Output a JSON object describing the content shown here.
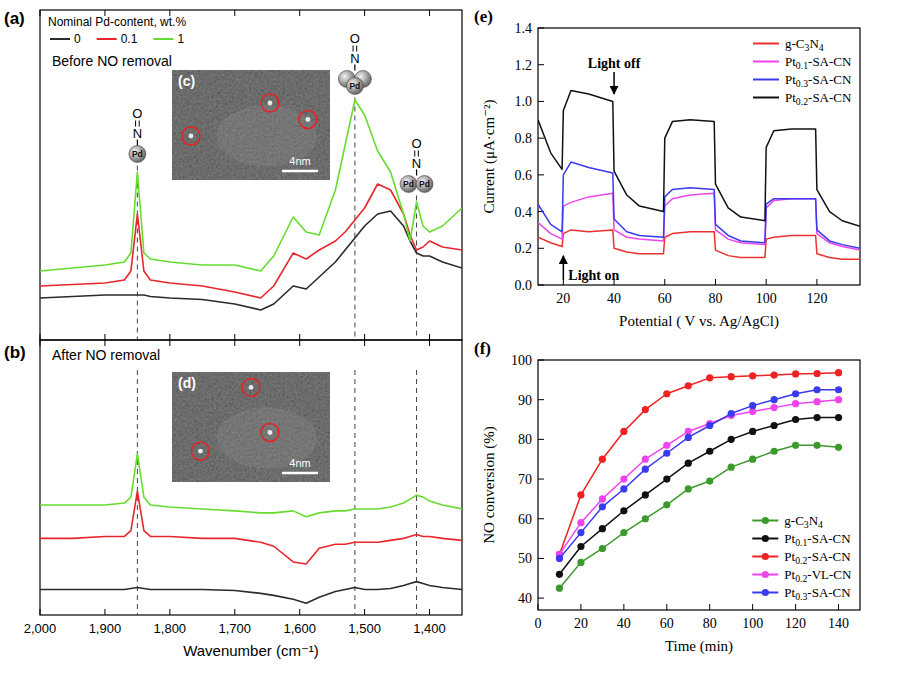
{
  "chart_data": [
    {
      "type": "line",
      "title": "(a)",
      "subtitle": "Before NO removal",
      "legend_title": "Nominal Pd-content, wt.%",
      "legend": "upper left",
      "x": [
        2000,
        1950,
        1900,
        1870,
        1860,
        1850,
        1840,
        1830,
        1800,
        1750,
        1700,
        1660,
        1640,
        1610,
        1590,
        1570,
        1545,
        1530,
        1515,
        1500,
        1480,
        1460,
        1440,
        1430,
        1420,
        1410,
        1400,
        1380,
        1350
      ],
      "xlim": [
        2000,
        1350
      ],
      "xticks": [
        2000,
        1900,
        1800,
        1700,
        1600,
        1500,
        1400
      ],
      "ylim": [
        0,
        11
      ],
      "yticks": [],
      "tick_labels": false,
      "vlines": [
        1850,
        1515,
        1420
      ],
      "icons": [
        {
          "at": 1850,
          "labels": [
            "O",
            "N",
            "Pd"
          ],
          "metal_atoms": 1
        },
        {
          "at": 1515,
          "labels": [
            "O",
            "N",
            "Pd"
          ],
          "metal_atoms": 3
        },
        {
          "at": 1420,
          "labels": [
            "O",
            "N",
            "Pd",
            "Pd"
          ],
          "metal_atoms": 2
        }
      ],
      "inset": {
        "label": "(c)",
        "scale_bar": "4nm"
      },
      "series": [
        {
          "name": "0",
          "color": "#2b2b2b",
          "values": [
            1.4,
            1.45,
            1.5,
            1.5,
            1.5,
            1.5,
            1.5,
            1.45,
            1.4,
            1.35,
            1.2,
            1.0,
            1.2,
            1.8,
            1.7,
            2.1,
            2.6,
            3.0,
            3.4,
            3.8,
            4.2,
            4.3,
            3.8,
            3.3,
            2.9,
            2.8,
            2.8,
            2.6,
            2.4
          ]
        },
        {
          "name": "0.1",
          "color": "#e8262b",
          "values": [
            1.8,
            1.85,
            1.9,
            2.0,
            2.3,
            4.2,
            2.3,
            2.0,
            1.9,
            1.8,
            1.6,
            1.4,
            1.8,
            2.9,
            2.7,
            3.0,
            3.3,
            3.6,
            4.0,
            4.4,
            5.2,
            5.0,
            4.2,
            3.5,
            3.0,
            3.1,
            3.3,
            3.1,
            3.0
          ]
        },
        {
          "name": "1",
          "color": "#66dd2e",
          "values": [
            2.3,
            2.4,
            2.5,
            2.6,
            2.9,
            5.6,
            2.9,
            2.7,
            2.6,
            2.5,
            2.5,
            2.3,
            2.8,
            4.1,
            3.6,
            3.5,
            5.0,
            6.5,
            8.0,
            7.5,
            6.3,
            5.6,
            4.2,
            3.3,
            4.6,
            3.8,
            3.6,
            3.8,
            4.4
          ]
        }
      ]
    },
    {
      "type": "line",
      "title": "(b)",
      "subtitle": "After NO removal",
      "x_label": "Wavenumber (cm⁻¹)",
      "x": [
        2000,
        1950,
        1900,
        1870,
        1860,
        1850,
        1840,
        1830,
        1800,
        1750,
        1700,
        1660,
        1640,
        1610,
        1590,
        1570,
        1545,
        1530,
        1515,
        1500,
        1480,
        1460,
        1440,
        1430,
        1420,
        1410,
        1400,
        1380,
        1350
      ],
      "xlim": [
        2000,
        1350
      ],
      "xticks": [
        {
          "value": 2000,
          "label": "2,000"
        },
        {
          "value": 1900,
          "label": "1,900"
        },
        {
          "value": 1800,
          "label": "1,800"
        },
        {
          "value": 1700,
          "label": "1,700"
        },
        {
          "value": 1600,
          "label": "1,600"
        },
        {
          "value": 1500,
          "label": "1,500"
        },
        {
          "value": 1400,
          "label": "1,400"
        }
      ],
      "ylim": [
        0,
        14
      ],
      "yticks": [],
      "tick_labels": "x",
      "vlines": [
        1850,
        1515,
        1420
      ],
      "inset": {
        "label": "(d)",
        "scale_bar": "4nm"
      },
      "series": [
        {
          "color": "#2b2b2b",
          "values": [
            1.3,
            1.3,
            1.3,
            1.3,
            1.35,
            1.4,
            1.35,
            1.3,
            1.3,
            1.3,
            1.25,
            1.1,
            1.0,
            0.8,
            0.6,
            0.9,
            1.2,
            1.3,
            1.4,
            1.3,
            1.3,
            1.35,
            1.5,
            1.6,
            1.7,
            1.6,
            1.5,
            1.4,
            1.3
          ]
        },
        {
          "color": "#e8262b",
          "values": [
            3.9,
            3.9,
            4.0,
            4.0,
            4.3,
            6.3,
            4.3,
            4.0,
            4.0,
            3.9,
            3.9,
            3.7,
            3.5,
            2.7,
            2.6,
            3.4,
            3.6,
            3.6,
            3.7,
            3.7,
            3.7,
            3.8,
            3.9,
            4.0,
            4.1,
            4.0,
            4.0,
            3.9,
            3.8
          ]
        },
        {
          "color": "#66dd2e",
          "values": [
            5.6,
            5.6,
            5.6,
            5.7,
            6.0,
            8.2,
            6.0,
            5.6,
            5.5,
            5.4,
            5.3,
            5.2,
            5.2,
            5.3,
            5.0,
            5.2,
            5.3,
            5.3,
            5.4,
            5.4,
            5.4,
            5.5,
            5.7,
            5.9,
            6.1,
            6.0,
            5.8,
            5.6,
            5.4
          ]
        }
      ]
    },
    {
      "type": "line",
      "title": "(e)",
      "x_label": "Potential ( V vs. Ag/AgCl)",
      "y_label": "Current (μA·cm⁻²)",
      "legend": "upper right",
      "x": [
        10,
        15,
        19.5,
        20,
        23,
        30,
        39.5,
        40,
        45,
        50,
        59.5,
        60,
        63,
        70,
        79.5,
        80,
        85,
        90,
        99.5,
        100,
        103,
        110,
        119.5,
        120,
        125,
        130,
        137
      ],
      "xlim": [
        10,
        137
      ],
      "xticks": [
        20,
        40,
        60,
        80,
        100,
        120
      ],
      "ylim": [
        0,
        1.4
      ],
      "yticks": [
        {
          "value": 0,
          "label": "0.0"
        },
        0.2,
        0.4,
        0.6,
        0.8,
        {
          "value": 1,
          "label": "1.0"
        },
        1.2,
        1.4
      ],
      "annotations": [
        {
          "text": "Light on",
          "x": 20,
          "y": 0.17
        },
        {
          "text": "Light off",
          "x": 40,
          "y": 1.03
        }
      ],
      "series": [
        {
          "name": "g-C3N4",
          "color": "#e8322e",
          "values": [
            0.26,
            0.23,
            0.21,
            0.28,
            0.3,
            0.29,
            0.3,
            0.2,
            0.18,
            0.17,
            0.17,
            0.26,
            0.28,
            0.29,
            0.29,
            0.19,
            0.16,
            0.15,
            0.15,
            0.25,
            0.26,
            0.27,
            0.27,
            0.17,
            0.15,
            0.14,
            0.14
          ]
        },
        {
          "name": "Pt0.1-SA-CN",
          "color": "#ee44ee",
          "values": [
            0.34,
            0.28,
            0.25,
            0.43,
            0.45,
            0.48,
            0.5,
            0.3,
            0.26,
            0.25,
            0.24,
            0.43,
            0.47,
            0.49,
            0.5,
            0.3,
            0.25,
            0.23,
            0.22,
            0.42,
            0.46,
            0.47,
            0.47,
            0.28,
            0.23,
            0.21,
            0.19
          ]
        },
        {
          "name": "Pt0.3-SA-CN",
          "color": "#3a3aee",
          "values": [
            0.44,
            0.33,
            0.29,
            0.6,
            0.67,
            0.64,
            0.61,
            0.36,
            0.29,
            0.27,
            0.26,
            0.48,
            0.52,
            0.53,
            0.52,
            0.33,
            0.27,
            0.24,
            0.23,
            0.44,
            0.47,
            0.47,
            0.47,
            0.3,
            0.24,
            0.22,
            0.2
          ]
        },
        {
          "name": "Pt0.2-SA-CN",
          "color": "#111111",
          "values": [
            0.9,
            0.72,
            0.63,
            0.95,
            1.06,
            1.04,
            1.0,
            0.62,
            0.49,
            0.43,
            0.4,
            0.8,
            0.89,
            0.9,
            0.89,
            0.55,
            0.42,
            0.37,
            0.35,
            0.75,
            0.84,
            0.85,
            0.85,
            0.52,
            0.4,
            0.35,
            0.32
          ]
        }
      ]
    },
    {
      "type": "line",
      "marker": "circle",
      "title": "(f)",
      "x_label": "Time (min)",
      "y_label": "NO conversion (%)",
      "legend": "lower right",
      "x": [
        10,
        20,
        30,
        40,
        50,
        60,
        70,
        80,
        90,
        100,
        110,
        120,
        130,
        140
      ],
      "xlim": [
        0,
        150
      ],
      "xticks": [
        0,
        20,
        40,
        60,
        80,
        100,
        120,
        140
      ],
      "ylim": [
        37,
        100
      ],
      "yticks": [
        40,
        50,
        60,
        70,
        80,
        90,
        100
      ],
      "series": [
        {
          "name": "g-C3N4",
          "color": "#3c9a2c",
          "values": [
            42.5,
            49,
            52.5,
            56.5,
            60,
            63.5,
            67.5,
            69.5,
            73,
            75,
            77,
            78.5,
            78.5,
            78
          ]
        },
        {
          "name": "Pt0.1-SA-CN",
          "color": "#111111",
          "values": [
            46,
            53,
            57.5,
            62,
            66,
            70,
            74,
            77,
            80,
            82,
            83.5,
            85,
            85.5,
            85.5
          ]
        },
        {
          "name": "Pt0.2-SA-CN",
          "color": "#ee2222",
          "values": [
            51,
            66,
            75,
            82,
            87.5,
            91.5,
            93.5,
            95.5,
            95.8,
            96,
            96.2,
            96.5,
            96.6,
            96.8
          ]
        },
        {
          "name": "Pt0.2-VL-CN",
          "color": "#ee44ee",
          "values": [
            51,
            59,
            65,
            70,
            75,
            78.5,
            82,
            84,
            86,
            87,
            88,
            89,
            89.5,
            90
          ]
        },
        {
          "name": "Pt0.3-SA-CN",
          "color": "#3a3aee",
          "values": [
            50,
            56.5,
            63,
            67.5,
            72.5,
            76.5,
            80.5,
            83.5,
            86.5,
            88.5,
            90,
            91.5,
            92.5,
            92.5
          ]
        }
      ]
    }
  ]
}
